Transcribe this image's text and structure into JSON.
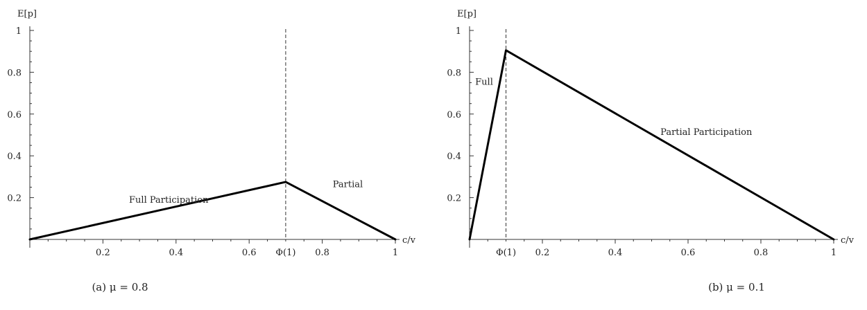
{
  "chart_data": [
    {
      "type": "line",
      "caption": "(a) μ = 0.8",
      "xlabel": "c/v",
      "ylabel": "E[p]",
      "xlim": [
        0,
        1
      ],
      "ylim": [
        0,
        1
      ],
      "x_ticks": [
        "0.2",
        "0.4",
        "0.6",
        "0.8",
        "1"
      ],
      "y_ticks": [
        "0.2",
        "0.4",
        "0.6",
        "0.8",
        "1"
      ],
      "marker": {
        "x": 0.7,
        "label": "Φ(1)"
      },
      "series": [
        {
          "x": [
            0,
            0.7,
            1
          ],
          "y": [
            0,
            0.275,
            0
          ]
        }
      ],
      "annotations": [
        {
          "text": "Full Participation",
          "x": 0.38,
          "y": 0.175
        },
        {
          "text": "Partial",
          "x": 0.87,
          "y": 0.25
        }
      ]
    },
    {
      "type": "line",
      "caption": "(b) μ = 0.1",
      "xlabel": "c/v",
      "ylabel": "E[p]",
      "xlim": [
        0,
        1
      ],
      "ylim": [
        0,
        1
      ],
      "x_ticks": [
        "0.2",
        "0.4",
        "0.6",
        "0.8",
        "1"
      ],
      "y_ticks": [
        "0.2",
        "0.4",
        "0.6",
        "0.8",
        "1"
      ],
      "marker": {
        "x": 0.1,
        "label": "Φ(1)"
      },
      "series": [
        {
          "x": [
            0,
            0.1,
            1
          ],
          "y": [
            0,
            0.905,
            0
          ]
        }
      ],
      "annotations": [
        {
          "text": "Full",
          "x": 0.04,
          "y": 0.74
        },
        {
          "text": "Partial Participation",
          "x": 0.65,
          "y": 0.5
        }
      ]
    }
  ]
}
